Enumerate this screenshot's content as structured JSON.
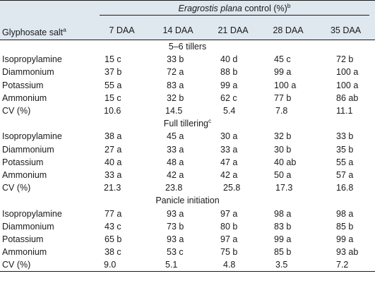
{
  "table": {
    "header": {
      "spanning_title_italic": "Eragrostis plana",
      "spanning_title_rest": " control (%)",
      "spanning_title_sup": "b",
      "row_label": "Glyphosate salt",
      "row_label_sup": "a",
      "columns": [
        "7 DAA",
        "14 DAA",
        "21 DAA",
        "28 DAA",
        "35 DAA"
      ]
    },
    "sections": [
      {
        "title": "5–6 tillers",
        "title_sup": "",
        "rows": [
          {
            "label": "Isopropylamine",
            "values": [
              "15 c",
              "33 b",
              "40 d",
              "45 c",
              "72 b"
            ]
          },
          {
            "label": "Diammonium",
            "values": [
              "37 b",
              "72 a",
              "88 b",
              "99 a",
              "100 a"
            ]
          },
          {
            "label": "Potassium",
            "values": [
              "55 a",
              "83 a",
              "99 a",
              "100 a",
              "100 a"
            ]
          },
          {
            "label": "Ammonium",
            "values": [
              "15 c",
              "32 b",
              "62 c",
              "77 b",
              "86 ab"
            ]
          },
          {
            "label": "CV (%)",
            "values": [
              "10.6",
              "14.5",
              "5.4",
              "7.8",
              "11.1"
            ]
          }
        ]
      },
      {
        "title": "Full tillering",
        "title_sup": "c",
        "rows": [
          {
            "label": "Isopropylamine",
            "values": [
              "38 a",
              "45 a",
              "30 a",
              "32 b",
              "33 b"
            ]
          },
          {
            "label": "Diammonium",
            "values": [
              "27 a",
              "33 a",
              "33 a",
              "30 b",
              "35 b"
            ]
          },
          {
            "label": "Potassium",
            "values": [
              "40 a",
              "48 a",
              "47 a",
              "40 ab",
              "55 a"
            ]
          },
          {
            "label": "Ammonium",
            "values": [
              "33 a",
              "42 a",
              "42 a",
              "50 a",
              "57 a"
            ]
          },
          {
            "label": "CV (%)",
            "values": [
              "21.3",
              "23.8",
              "25.8",
              "17.3",
              "16.8"
            ]
          }
        ]
      },
      {
        "title": "Panicle initiation",
        "title_sup": "",
        "rows": [
          {
            "label": "Isopropylamine",
            "values": [
              "77 a",
              "93 a",
              "97 a",
              "98 a",
              "98 a"
            ]
          },
          {
            "label": "Diammonium",
            "values": [
              "43 c",
              "73 b",
              "80 b",
              "83 b",
              "85 b"
            ]
          },
          {
            "label": "Potassium",
            "values": [
              "65 b",
              "93 a",
              "97 a",
              "99 a",
              "99 a"
            ]
          },
          {
            "label": "Ammonium",
            "values": [
              "38 c",
              "53 c",
              "75 b",
              "85 b",
              "93 ab"
            ]
          },
          {
            "label": "CV (%)",
            "values": [
              "9.0",
              "5.1",
              "4.8",
              "3.5",
              "7.2"
            ]
          }
        ]
      }
    ]
  }
}
